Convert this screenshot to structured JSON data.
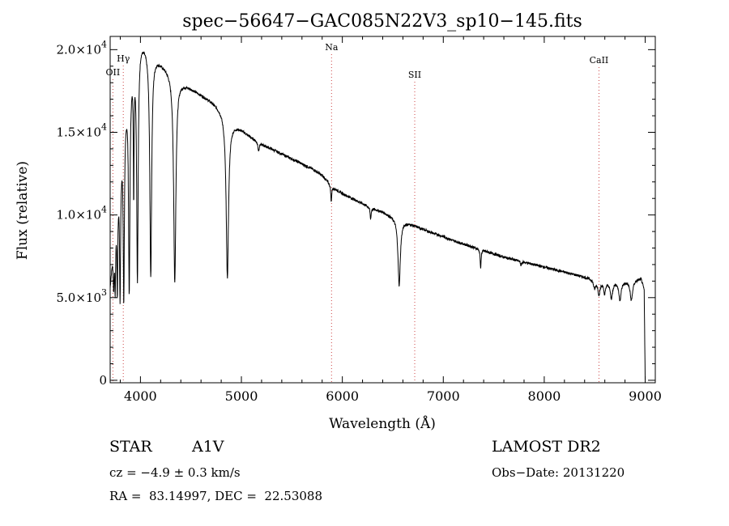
{
  "chart_data": {
    "type": "line",
    "title": "spec−56647−GAC085N22V3_sp10−145.fits",
    "xlabel": "Wavelength (Å)",
    "ylabel": "Flux (relative)",
    "xlim": [
      3700,
      9100
    ],
    "ylim": [
      -150,
      20800
    ],
    "x_ticks": [
      4000,
      5000,
      6000,
      7000,
      8000,
      9000
    ],
    "y_ticks": [
      {
        "value": 0,
        "mantissa": "0",
        "exp": ""
      },
      {
        "value": 5000,
        "mantissa": "5.0×10",
        "exp": "3"
      },
      {
        "value": 10000,
        "mantissa": "1.0×10",
        "exp": "4"
      },
      {
        "value": 15000,
        "mantissa": "1.5×10",
        "exp": "4"
      },
      {
        "value": 20000,
        "mantissa": "2.0×10",
        "exp": "4"
      }
    ],
    "line_markers": [
      {
        "label": "OII",
        "x": 3727,
        "color": "#cc4444"
      },
      {
        "label": "Hγ",
        "x": 3830,
        "color": "#cc4444"
      },
      {
        "label": "Na",
        "x": 5893,
        "color": "#cc4444"
      },
      {
        "label": "SII",
        "x": 6717,
        "color": "#cc4444"
      },
      {
        "label": "CaII",
        "x": 8542,
        "color": "#cc4444"
      }
    ],
    "series": [
      {
        "continuum": [
          [
            3700,
            5800
          ],
          [
            3720,
            7500
          ],
          [
            3750,
            9500
          ],
          [
            3780,
            12000
          ],
          [
            3810,
            14000
          ],
          [
            3840,
            16000
          ],
          [
            3870,
            17500
          ],
          [
            3900,
            18500
          ],
          [
            3930,
            19500
          ],
          [
            3960,
            20300
          ],
          [
            4000,
            20700
          ],
          [
            4050,
            20400
          ],
          [
            4100,
            20000
          ],
          [
            4200,
            19300
          ],
          [
            4300,
            18700
          ],
          [
            4400,
            18100
          ],
          [
            4500,
            17700
          ],
          [
            4600,
            17300
          ],
          [
            4700,
            16900
          ],
          [
            4800,
            16400
          ],
          [
            4900,
            15600
          ],
          [
            5000,
            15200
          ],
          [
            5100,
            14700
          ],
          [
            5200,
            14300
          ],
          [
            5300,
            14000
          ],
          [
            5400,
            13700
          ],
          [
            5500,
            13400
          ],
          [
            5600,
            13100
          ],
          [
            5700,
            12800
          ],
          [
            5800,
            12400
          ],
          [
            5900,
            11700
          ],
          [
            6000,
            11300
          ],
          [
            6100,
            11000
          ],
          [
            6200,
            10700
          ],
          [
            6300,
            10400
          ],
          [
            6400,
            10200
          ],
          [
            6500,
            9900
          ],
          [
            6600,
            9650
          ],
          [
            6700,
            9400
          ],
          [
            6800,
            9150
          ],
          [
            6900,
            8900
          ],
          [
            7000,
            8700
          ],
          [
            7100,
            8450
          ],
          [
            7200,
            8250
          ],
          [
            7300,
            8050
          ],
          [
            7400,
            7850
          ],
          [
            7500,
            7650
          ],
          [
            7600,
            7450
          ],
          [
            7700,
            7300
          ],
          [
            7800,
            7150
          ],
          [
            7900,
            7000
          ],
          [
            8000,
            6850
          ],
          [
            8100,
            6700
          ],
          [
            8200,
            6550
          ],
          [
            8300,
            6400
          ],
          [
            8400,
            6250
          ],
          [
            8500,
            6100
          ],
          [
            8600,
            6000
          ],
          [
            8700,
            6000
          ],
          [
            8800,
            6000
          ],
          [
            8900,
            6100
          ],
          [
            8960,
            6150
          ],
          [
            8990,
            5500
          ],
          [
            9000,
            0
          ]
        ],
        "absorption_lines": [
          {
            "x": 3735,
            "depth": 2500,
            "width": 6
          },
          {
            "x": 3750,
            "depth": 3600,
            "width": 5
          },
          {
            "x": 3771,
            "depth": 5500,
            "width": 5
          },
          {
            "x": 3798,
            "depth": 7800,
            "width": 6
          },
          {
            "x": 3835,
            "depth": 10500,
            "width": 7
          },
          {
            "x": 3889,
            "depth": 12500,
            "width": 8
          },
          {
            "x": 3933,
            "depth": 7800,
            "width": 4
          },
          {
            "x": 3970,
            "depth": 14100,
            "width": 9
          },
          {
            "x": 4102,
            "depth": 13600,
            "width": 11
          },
          {
            "x": 4340,
            "depth": 12500,
            "width": 13
          },
          {
            "x": 4861,
            "depth": 9700,
            "width": 14
          },
          {
            "x": 5170,
            "depth": 500,
            "width": 8
          },
          {
            "x": 5890,
            "depth": 1000,
            "width": 5
          },
          {
            "x": 6280,
            "depth": 700,
            "width": 6
          },
          {
            "x": 6563,
            "depth": 4000,
            "width": 14
          },
          {
            "x": 7370,
            "depth": 1200,
            "width": 5
          },
          {
            "x": 7770,
            "depth": 250,
            "width": 6
          },
          {
            "x": 8498,
            "depth": 500,
            "width": 12
          },
          {
            "x": 8542,
            "depth": 800,
            "width": 14
          },
          {
            "x": 8598,
            "depth": 700,
            "width": 12
          },
          {
            "x": 8665,
            "depth": 1000,
            "width": 14
          },
          {
            "x": 8750,
            "depth": 1100,
            "width": 14
          },
          {
            "x": 8863,
            "depth": 1200,
            "width": 15
          }
        ]
      }
    ]
  },
  "info": {
    "object_class": "STAR",
    "subclass": "A1V",
    "redshift": "cz = −4.9 ± 0.3 km/s",
    "coords": "RA =  83.14997, DEC =  22.53088",
    "survey": "LAMOST DR2",
    "obs_date": "Obs−Date: 20131220"
  }
}
